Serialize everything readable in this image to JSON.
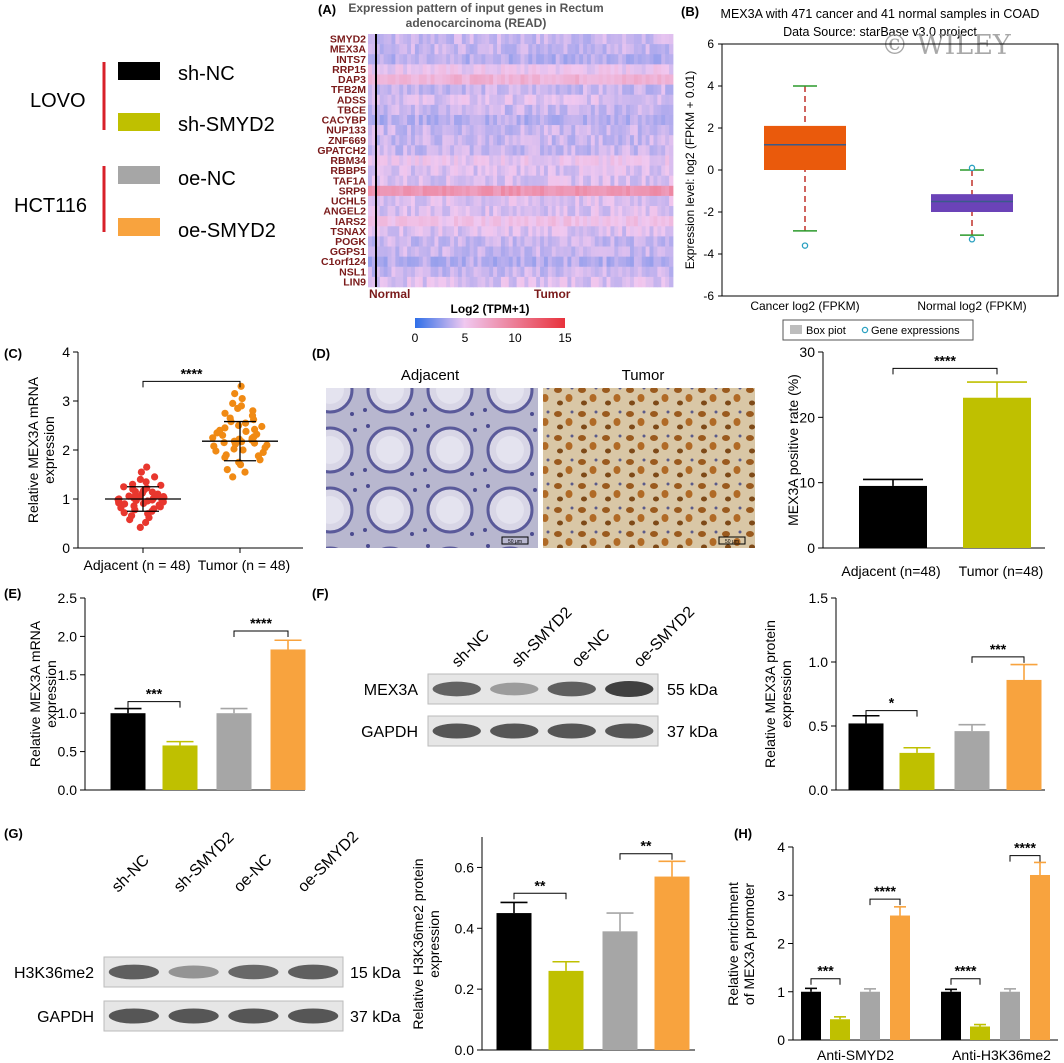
{
  "panel_letters": {
    "A": "(A)",
    "B": "(B)",
    "C": "(C)",
    "D": "(D)",
    "E": "(E)",
    "F": "(F)",
    "G": "(G)",
    "H": "(H)"
  },
  "legend": {
    "groups": [
      {
        "name": "LOVO",
        "items": [
          {
            "label": "sh-NC",
            "color": "#000000"
          },
          {
            "label": "sh-SMYD2",
            "color": "#bfc000"
          }
        ]
      },
      {
        "name": "HCT116",
        "items": [
          {
            "label": "oe-NC",
            "color": "#a6a6a6"
          },
          {
            "label": "oe-SMYD2",
            "color": "#f8a33e"
          }
        ]
      }
    ],
    "bracket_color": "#d8202a"
  },
  "watermark": "© WILEY",
  "blot_F": {
    "lanes": [
      "sh-NC",
      "sh-SMYD2",
      "oe-NC",
      "oe-SMYD2"
    ],
    "rows": [
      {
        "label": "MEX3A",
        "size": "55 kDa",
        "intensity": [
          0.78,
          0.45,
          0.8,
          0.98
        ]
      },
      {
        "label": "GAPDH",
        "size": "37 kDa",
        "intensity": [
          0.85,
          0.85,
          0.85,
          0.85
        ]
      }
    ]
  },
  "blot_G": {
    "lanes": [
      "sh-NC",
      "sh-SMYD2",
      "oe-NC",
      "oe-SMYD2"
    ],
    "rows": [
      {
        "label": "H3K36me2",
        "size": "15 kDa",
        "intensity": [
          0.8,
          0.5,
          0.75,
          0.8
        ]
      },
      {
        "label": "GAPDH",
        "size": "37 kDa",
        "intensity": [
          0.85,
          0.85,
          0.85,
          0.85
        ]
      }
    ]
  },
  "ihc": {
    "left_label": "Adjacent",
    "right_label": "Tumor",
    "scale_bar": "50 μm"
  },
  "chart_data": [
    {
      "id": "A",
      "type": "heatmap",
      "title": "Expression pattern of input genes in Rectum adenocarcinoma (READ)",
      "genes": [
        "SMYD2",
        "MEX3A",
        "INTS7",
        "RRP15",
        "DAP3",
        "TFB2M",
        "ADSS",
        "TBCE",
        "CACYBP",
        "NUP133",
        "ZNF669",
        "GPATCH2",
        "RBM34",
        "RBBP5",
        "TAF1A",
        "SRP9",
        "UCHL5",
        "ANGEL2",
        "IARS2",
        "TSNAX",
        "POGK",
        "GGPS1",
        "C1orf124",
        "NSL1",
        "LIN9"
      ],
      "row_level": [
        4,
        4,
        3.5,
        5,
        6.5,
        4,
        4.5,
        4,
        3.5,
        4,
        4,
        4,
        5,
        4.5,
        4.5,
        8.5,
        4.5,
        4.5,
        5.5,
        4.5,
        4,
        4,
        3.5,
        4,
        4.5
      ],
      "groups": [
        "Normal",
        "Tumor"
      ],
      "colorbar": {
        "label": "Log2 (TPM+1)",
        "ticks": [
          0,
          5,
          10,
          15
        ],
        "colors": [
          "#2f6fe8",
          "#f0c8f0",
          "#e8323c"
        ]
      }
    },
    {
      "id": "B",
      "type": "box",
      "title": "MEX3A with 471 cancer and 41 normal samples in COAD",
      "subtitle": "Data Source: starBase v3.0 project",
      "ylabel": "Expression level: log2 (FPKM + 0.01)",
      "ylim": [
        -6,
        6
      ],
      "yticks": [
        -6,
        -4,
        -2,
        0,
        2,
        4,
        6
      ],
      "boxes": [
        {
          "name": "Cancer log2 (FPKM)",
          "color": "#ea5a0c",
          "min": -2.9,
          "q1": 0.0,
          "median": 1.2,
          "q3": 2.1,
          "max": 4.0,
          "outliers": [
            -3.6
          ]
        },
        {
          "name": "Normal log2 (FPKM)",
          "color": "#6b43b8",
          "min": -3.1,
          "q1": -2.0,
          "median": -1.5,
          "q3": -1.15,
          "max": 0.0,
          "outliers": [
            -3.3,
            0.1
          ]
        }
      ],
      "legend": [
        "Box piot",
        "Gene expressions"
      ]
    },
    {
      "id": "C",
      "type": "scatter",
      "ylabel": "Relative MEX3A mRNA expression",
      "ylim": [
        0,
        4
      ],
      "yticks": [
        0,
        1,
        2,
        3,
        4
      ],
      "categories": [
        "Adjacent (n = 48)",
        "Tumor (n = 48)"
      ],
      "series": [
        {
          "color": "#e8372e",
          "mean": 1.0,
          "sd": 0.25,
          "values": [
            0.42,
            0.52,
            0.58,
            0.62,
            0.66,
            0.7,
            0.72,
            0.75,
            0.78,
            0.8,
            0.82,
            0.84,
            0.86,
            0.88,
            0.9,
            0.91,
            0.92,
            0.94,
            0.95,
            0.96,
            0.97,
            0.98,
            0.99,
            1.0,
            1.0,
            1.01,
            1.02,
            1.03,
            1.04,
            1.05,
            1.06,
            1.08,
            1.09,
            1.1,
            1.12,
            1.14,
            1.15,
            1.17,
            1.2,
            1.22,
            1.25,
            1.28,
            1.3,
            1.35,
            1.4,
            1.45,
            1.55,
            1.65
          ]
        },
        {
          "color": "#f08a14",
          "mean": 2.18,
          "sd": 0.4,
          "values": [
            1.45,
            1.55,
            1.6,
            1.7,
            1.75,
            1.8,
            1.85,
            1.88,
            1.9,
            1.95,
            1.98,
            2.0,
            2.02,
            2.05,
            2.08,
            2.1,
            2.12,
            2.14,
            2.15,
            2.17,
            2.18,
            2.2,
            2.22,
            2.24,
            2.25,
            2.27,
            2.3,
            2.32,
            2.35,
            2.38,
            2.4,
            2.42,
            2.45,
            2.48,
            2.5,
            2.55,
            2.58,
            2.62,
            2.65,
            2.7,
            2.75,
            2.8,
            2.85,
            2.9,
            2.95,
            3.05,
            3.15,
            3.3
          ]
        }
      ],
      "significance": [
        {
          "from": 0,
          "to": 1,
          "y": 3.4,
          "label": "****"
        }
      ]
    },
    {
      "id": "D",
      "type": "bar",
      "ylabel": "MEX3A positive rate (%)",
      "ylim": [
        0,
        30
      ],
      "yticks": [
        0,
        10,
        20,
        30
      ],
      "categories": [
        "Adjacent (n=48)",
        "Tumor (n=48)"
      ],
      "values": [
        9.5,
        23.0
      ],
      "errors": [
        1.0,
        2.4
      ],
      "colors": [
        "#000000",
        "#bfc000"
      ],
      "significance": [
        {
          "from": 0,
          "to": 1,
          "y": 27.5,
          "label": "****"
        }
      ]
    },
    {
      "id": "E",
      "type": "bar",
      "ylabel": "Relative MEX3A mRNA expression",
      "ylim": [
        0,
        2.5
      ],
      "yticks": [
        0.0,
        0.5,
        1.0,
        1.5,
        2.0,
        2.5
      ],
      "categories": [
        "sh-NC",
        "sh-SMYD2",
        "oe-NC",
        "oe-SMYD2"
      ],
      "values": [
        1.0,
        0.58,
        1.0,
        1.83
      ],
      "errors": [
        0.06,
        0.05,
        0.06,
        0.12
      ],
      "colors": [
        "#000000",
        "#bfc000",
        "#a6a6a6",
        "#f8a33e"
      ],
      "significance": [
        {
          "from": 0,
          "to": 1,
          "y": 1.15,
          "label": "***"
        },
        {
          "from": 2,
          "to": 3,
          "y": 2.07,
          "label": "****"
        }
      ]
    },
    {
      "id": "F",
      "type": "bar",
      "ylabel": "Relative MEX3A protein expression",
      "ylim": [
        0,
        1.5
      ],
      "yticks": [
        0.0,
        0.5,
        1.0,
        1.5
      ],
      "categories": [
        "sh-NC",
        "sh-SMYD2",
        "oe-NC",
        "oe-SMYD2"
      ],
      "values": [
        0.52,
        0.29,
        0.46,
        0.86
      ],
      "errors": [
        0.06,
        0.04,
        0.05,
        0.12
      ],
      "colors": [
        "#000000",
        "#bfc000",
        "#a6a6a6",
        "#f8a33e"
      ],
      "significance": [
        {
          "from": 0,
          "to": 1,
          "y": 0.62,
          "label": "*"
        },
        {
          "from": 2,
          "to": 3,
          "y": 1.04,
          "label": "***"
        }
      ]
    },
    {
      "id": "G",
      "type": "bar",
      "ylabel": "Relative H3K36me2 protein expression",
      "ylim": [
        0,
        0.7
      ],
      "yticks": [
        0.0,
        0.2,
        0.4,
        0.6
      ],
      "categories": [
        "sh-NC",
        "sh-SMYD2",
        "oe-NC",
        "oe-SMYD2"
      ],
      "values": [
        0.45,
        0.26,
        0.39,
        0.57
      ],
      "errors": [
        0.035,
        0.03,
        0.06,
        0.05
      ],
      "colors": [
        "#000000",
        "#bfc000",
        "#a6a6a6",
        "#f8a33e"
      ],
      "significance": [
        {
          "from": 0,
          "to": 1,
          "y": 0.515,
          "label": "**"
        },
        {
          "from": 2,
          "to": 3,
          "y": 0.645,
          "label": "**"
        }
      ]
    },
    {
      "id": "H",
      "type": "bar",
      "ylabel": "Relative enrichment of MEX3A promoter",
      "ylim": [
        0,
        4
      ],
      "yticks": [
        0,
        1,
        2,
        3,
        4
      ],
      "groups": [
        "Anti-SMYD2",
        "Anti-H3K36me2"
      ],
      "values": [
        [
          1.0,
          0.43,
          1.0,
          2.58
        ],
        [
          1.0,
          0.28,
          1.0,
          3.42
        ]
      ],
      "errors": [
        [
          0.07,
          0.05,
          0.06,
          0.18
        ],
        [
          0.05,
          0.04,
          0.06,
          0.26
        ]
      ],
      "colors": [
        "#000000",
        "#bfc000",
        "#a6a6a6",
        "#f8a33e"
      ],
      "significance": [
        {
          "group": 0,
          "from": 0,
          "to": 1,
          "y": 1.27,
          "label": "***"
        },
        {
          "group": 0,
          "from": 2,
          "to": 3,
          "y": 2.92,
          "label": "****"
        },
        {
          "group": 1,
          "from": 0,
          "to": 1,
          "y": 1.27,
          "label": "****"
        },
        {
          "group": 1,
          "from": 2,
          "to": 3,
          "y": 3.82,
          "label": "****"
        }
      ]
    }
  ]
}
